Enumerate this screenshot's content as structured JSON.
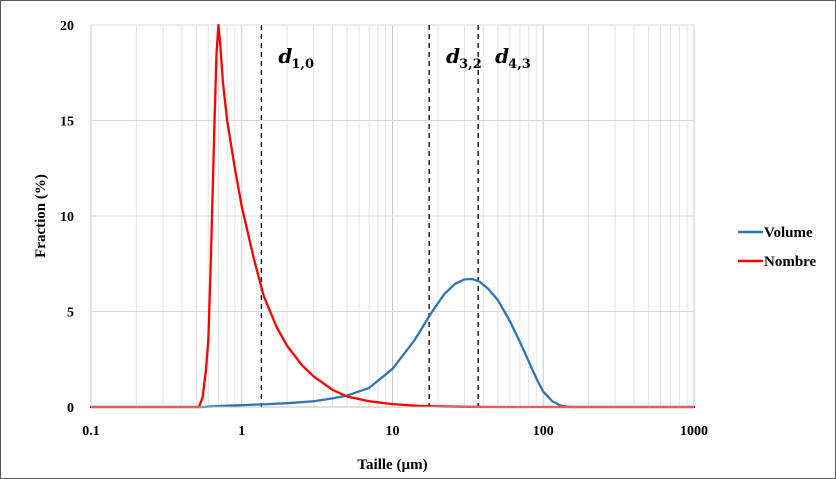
{
  "chart_data": {
    "type": "line",
    "title": "",
    "xlabel": "Taille (µm)",
    "ylabel": "Fraction (%)",
    "x_scale": "log",
    "xlim": [
      0.1,
      1000
    ],
    "ylim": [
      0,
      20
    ],
    "x_ticks": [
      0.1,
      1,
      10,
      100,
      1000
    ],
    "x_tick_labels": [
      "0.1",
      "1",
      "10",
      "100",
      "1000"
    ],
    "y_ticks": [
      0,
      5,
      10,
      15,
      20
    ],
    "y_tick_labels": [
      "0",
      "5",
      "10",
      "15",
      "20"
    ],
    "grid": true,
    "legend_position": "right",
    "series": [
      {
        "name": "Volume",
        "color": "#2E75B6",
        "x": [
          0.1,
          0.55,
          0.7,
          1,
          1.5,
          2,
          3,
          4,
          5,
          7,
          10,
          14,
          18,
          22,
          26,
          30,
          34,
          38,
          43,
          50,
          60,
          70,
          80,
          90,
          100,
          115,
          130,
          145,
          160,
          1000
        ],
        "y": [
          0,
          0,
          0.05,
          0.1,
          0.15,
          0.2,
          0.3,
          0.45,
          0.6,
          1.0,
          2.0,
          3.5,
          4.9,
          5.9,
          6.45,
          6.68,
          6.7,
          6.55,
          6.2,
          5.6,
          4.5,
          3.4,
          2.4,
          1.5,
          0.8,
          0.3,
          0.08,
          0.01,
          0,
          0
        ]
      },
      {
        "name": "Nombre",
        "color": "#FF0000",
        "x": [
          0.1,
          0.52,
          0.55,
          0.58,
          0.6,
          0.62,
          0.64,
          0.66,
          0.68,
          0.7,
          0.72,
          0.75,
          0.8,
          0.9,
          1,
          1.2,
          1.4,
          1.7,
          2,
          2.5,
          3,
          4,
          5,
          7,
          10,
          15,
          20,
          30,
          50,
          100,
          1000
        ],
        "y": [
          0,
          0,
          0.5,
          2.0,
          3.5,
          7.0,
          11.0,
          15.0,
          18.5,
          20.0,
          19.0,
          17.0,
          15.0,
          12.5,
          10.5,
          7.8,
          5.8,
          4.2,
          3.2,
          2.2,
          1.6,
          0.9,
          0.55,
          0.3,
          0.15,
          0.06,
          0.03,
          0.01,
          0,
          0,
          0
        ]
      }
    ],
    "vertical_lines": [
      {
        "x": 1.35,
        "label": "d",
        "sub": "1,0"
      },
      {
        "x": 17.5,
        "label": "d",
        "sub": "3,2"
      },
      {
        "x": 37,
        "label": "d",
        "sub": "4,3"
      }
    ]
  }
}
